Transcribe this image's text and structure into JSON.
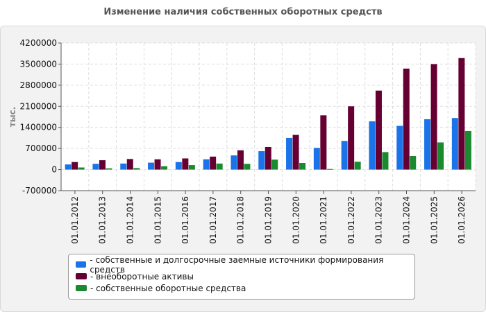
{
  "chart_data": {
    "type": "bar",
    "title": "Изменение наличия собственных оборотных средств",
    "ylabel": "тыс.",
    "xlabel": "",
    "ylim": [
      -700000,
      4200000
    ],
    "yticks": [
      -700000,
      0,
      700000,
      1400000,
      2100000,
      2800000,
      3500000,
      4200000
    ],
    "grid": true,
    "legend_position": "bottom",
    "categories": [
      "01.01.2012",
      "01.01.2013",
      "01.01.2014",
      "01.01.2015",
      "01.01.2016",
      "01.01.2017",
      "01.01.2018",
      "01.01.2019",
      "01.01.2020",
      "01.01.2021",
      "01.01.2022",
      "01.01.2023",
      "01.01.2024",
      "01.01.2025",
      "01.01.2026"
    ],
    "series": [
      {
        "name": "- собственные и долгосрочные заемные источники формирования средств",
        "color": "#1a73e8",
        "values": [
          170000,
          190000,
          200000,
          230000,
          250000,
          340000,
          470000,
          610000,
          1050000,
          720000,
          950000,
          1600000,
          1450000,
          1670000,
          1710000
        ]
      },
      {
        "name": "- внеоборотные активы",
        "color": "#660033",
        "values": [
          250000,
          310000,
          350000,
          340000,
          370000,
          430000,
          640000,
          750000,
          1150000,
          1800000,
          2100000,
          2620000,
          3350000,
          3500000,
          3700000
        ]
      },
      {
        "name": "- собственные оборотные средства",
        "color": "#1a8a2e",
        "values": [
          70000,
          40000,
          50000,
          110000,
          150000,
          200000,
          190000,
          330000,
          220000,
          20000,
          260000,
          580000,
          450000,
          900000,
          1280000
        ]
      }
    ]
  }
}
